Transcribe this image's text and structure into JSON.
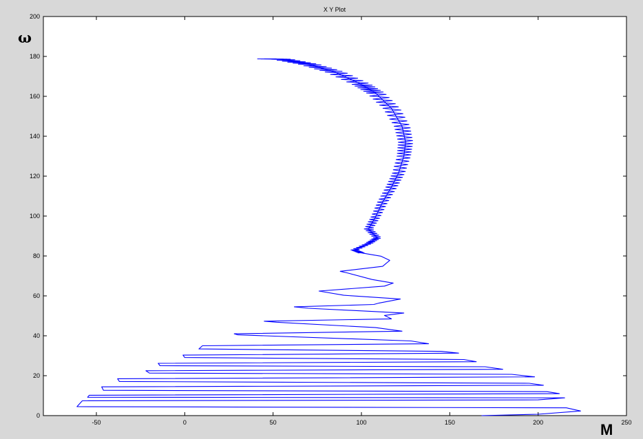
{
  "window": {
    "title": "X Y Plot"
  },
  "chart_data": {
    "type": "line",
    "title": "X Y Plot",
    "xlabel": "M",
    "ylabel": "ω",
    "xlim": [
      -80,
      250
    ],
    "ylim": [
      0,
      200
    ],
    "xticks": [
      -50,
      0,
      50,
      100,
      150,
      200,
      250
    ],
    "yticks": [
      0,
      20,
      40,
      60,
      80,
      100,
      120,
      140,
      160,
      180,
      200
    ],
    "grid": false,
    "colors": {
      "line": "#0000ff",
      "axes_background": "#ffffff",
      "figure_background": "#d8d8d8"
    },
    "series": [
      {
        "points": [
          [
            168,
            0
          ],
          [
            200,
            0.7
          ],
          [
            224,
            2.3
          ],
          [
            216,
            3.9
          ],
          [
            -61,
            4.5
          ],
          [
            -58,
            7.4
          ],
          [
            200,
            7.9
          ],
          [
            215,
            8.9
          ],
          [
            -55,
            9.2
          ],
          [
            -54,
            10.2
          ],
          [
            212,
            11
          ],
          [
            205,
            12
          ],
          [
            -46,
            12.7
          ],
          [
            -47,
            14.4
          ],
          [
            203,
            15.2
          ],
          [
            195,
            16.2
          ],
          [
            -37,
            17.1
          ],
          [
            -38,
            18.5
          ],
          [
            198,
            19.4
          ],
          [
            185,
            20.7
          ],
          [
            -20,
            21.3
          ],
          [
            -22,
            22.5
          ],
          [
            180,
            23.2
          ],
          [
            170,
            24.5
          ],
          [
            -14,
            25
          ],
          [
            -15,
            26.2
          ],
          [
            165,
            27
          ],
          [
            158,
            28.1
          ],
          [
            0,
            29.1
          ],
          [
            -1,
            30.3
          ],
          [
            155,
            31.3
          ],
          [
            145,
            32.2
          ],
          [
            8,
            33.4
          ],
          [
            10,
            35
          ],
          [
            138,
            36
          ],
          [
            128,
            37.4
          ],
          [
            30,
            40.5
          ],
          [
            28,
            41
          ],
          [
            123,
            42.3
          ],
          [
            108,
            44.1
          ],
          [
            52,
            46.8
          ],
          [
            45,
            47.3
          ],
          [
            117,
            48.5
          ],
          [
            113,
            50.2
          ],
          [
            124,
            51.4
          ],
          [
            70,
            53.8
          ],
          [
            62,
            54.5
          ],
          [
            107,
            55.7
          ],
          [
            110,
            56.4
          ],
          [
            122,
            58.4
          ],
          [
            90,
            60.3
          ],
          [
            76,
            62.4
          ],
          [
            113,
            64.9
          ],
          [
            118,
            66.4
          ],
          [
            106,
            68.2
          ],
          [
            92,
            71.5
          ],
          [
            88,
            72.3
          ],
          [
            112,
            74.8
          ],
          [
            116,
            77.8
          ],
          [
            111,
            79.9
          ],
          [
            100,
            81.5
          ],
          [
            96,
            83
          ],
          [
            104,
            86.2
          ],
          [
            109,
            89.1
          ],
          [
            104,
            93.5
          ],
          [
            108,
            99.5
          ],
          [
            112,
            107
          ],
          [
            117,
            114.5
          ],
          [
            121,
            121.5
          ],
          [
            124,
            130
          ],
          [
            125,
            137
          ],
          [
            123,
            145
          ],
          [
            117,
            154
          ],
          [
            108,
            161.7
          ],
          [
            100,
            166
          ],
          [
            85,
            172.2
          ],
          [
            70,
            176.1
          ],
          [
            55,
            178.6
          ],
          [
            45,
            178.8
          ]
        ]
      }
    ]
  }
}
